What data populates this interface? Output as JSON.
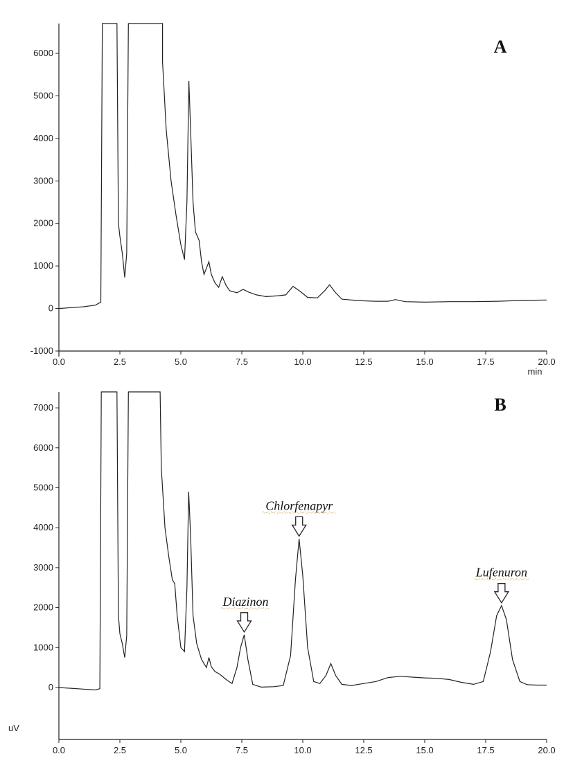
{
  "chart_data": [
    {
      "type": "line",
      "panel_label": "A",
      "xlabel": "min",
      "ylabel": "",
      "xlim": [
        0,
        20
      ],
      "ylim": [
        -1000,
        6700
      ],
      "x_ticks": [
        "0.0",
        "2.5",
        "5.0",
        "7.5",
        "10.0",
        "12.5",
        "15.0",
        "17.5",
        "20.0"
      ],
      "y_ticks": [
        "-1000",
        "0",
        "1000",
        "2000",
        "3000",
        "4000",
        "5000",
        "6000"
      ],
      "series": [
        {
          "x": [
            0,
            0.5,
            1.0,
            1.5,
            1.72,
            1.78,
            1.84,
            2.3,
            2.38,
            2.44,
            2.5,
            2.6,
            2.7,
            2.78,
            2.85,
            2.92,
            4.25,
            4.25,
            4.4,
            4.6,
            4.8,
            5.0,
            5.15,
            5.25,
            5.33,
            5.4,
            5.5,
            5.6,
            5.75,
            5.85,
            5.95,
            6.05,
            6.15,
            6.25,
            6.4,
            6.55,
            6.7,
            6.85,
            7.0,
            7.3,
            7.55,
            7.8,
            8.1,
            8.5,
            9.0,
            9.3,
            9.6,
            9.9,
            10.2,
            10.6,
            10.9,
            11.1,
            11.3,
            11.6,
            12.0,
            12.5,
            13.0,
            13.5,
            13.8,
            14.2,
            15.0,
            16.0,
            17.0,
            18.0,
            19.0,
            20.0
          ],
          "y": [
            0,
            20,
            40,
            80,
            150,
            6700,
            6700,
            6700,
            6700,
            2000,
            1700,
            1300,
            730,
            1300,
            6700,
            6700,
            6700,
            5800,
            4200,
            3000,
            2200,
            1500,
            1150,
            2500,
            5350,
            4200,
            2500,
            1800,
            1600,
            1100,
            800,
            950,
            1100,
            800,
            600,
            500,
            750,
            550,
            420,
            370,
            450,
            380,
            320,
            280,
            300,
            320,
            520,
            400,
            260,
            250,
            420,
            560,
            400,
            220,
            200,
            180,
            170,
            170,
            210,
            160,
            150,
            160,
            160,
            170,
            190,
            200
          ]
        }
      ]
    },
    {
      "type": "line",
      "panel_label": "B",
      "xlabel": "",
      "ylabel": "uV",
      "xlim": [
        0,
        20
      ],
      "ylim": [
        -1300,
        7400
      ],
      "x_ticks": [
        "0.0",
        "2.5",
        "5.0",
        "7.5",
        "10.0",
        "12.5",
        "15.0",
        "17.5",
        "20.0"
      ],
      "y_ticks": [
        "0",
        "1000",
        "2000",
        "3000",
        "4000",
        "5000",
        "6000",
        "7000"
      ],
      "series": [
        {
          "x": [
            0,
            0.5,
            1.0,
            1.5,
            1.68,
            1.74,
            1.8,
            2.3,
            2.38,
            2.44,
            2.5,
            2.6,
            2.7,
            2.78,
            2.85,
            2.92,
            4.15,
            4.2,
            4.35,
            4.5,
            4.65,
            4.75,
            4.85,
            5.0,
            5.15,
            5.25,
            5.32,
            5.4,
            5.5,
            5.65,
            5.85,
            6.05,
            6.15,
            6.25,
            6.4,
            6.6,
            6.9,
            7.1,
            7.3,
            7.45,
            7.6,
            7.75,
            7.95,
            8.3,
            8.8,
            9.2,
            9.5,
            9.7,
            9.85,
            10.0,
            10.2,
            10.45,
            10.7,
            10.95,
            11.15,
            11.35,
            11.6,
            12.0,
            12.5,
            13.0,
            13.5,
            14.0,
            14.5,
            15.0,
            15.5,
            16.0,
            16.5,
            17.0,
            17.4,
            17.7,
            17.95,
            18.15,
            18.35,
            18.6,
            18.9,
            19.2,
            19.6,
            20.0
          ],
          "y": [
            0,
            -20,
            -40,
            -60,
            -30,
            7400,
            7400,
            7400,
            7400,
            1800,
            1350,
            1100,
            750,
            1300,
            7400,
            7400,
            7400,
            5500,
            4000,
            3300,
            2700,
            2600,
            1800,
            1000,
            900,
            2500,
            4900,
            3800,
            1800,
            1100,
            700,
            500,
            750,
            520,
            400,
            330,
            180,
            100,
            500,
            1000,
            1320,
            700,
            80,
            10,
            20,
            50,
            800,
            2700,
            3720,
            2800,
            1000,
            150,
            100,
            300,
            600,
            300,
            80,
            50,
            100,
            150,
            250,
            280,
            260,
            240,
            230,
            200,
            130,
            80,
            150,
            900,
            1800,
            2050,
            1700,
            700,
            150,
            70,
            60,
            60
          ]
        }
      ],
      "annotations": [
        {
          "text": "Diazinon",
          "x": 7.6,
          "y": 1320
        },
        {
          "text": "Chlorfenapyr",
          "x": 9.85,
          "y": 3720
        },
        {
          "text": "Lufenuron",
          "x": 18.15,
          "y": 2050
        }
      ]
    }
  ]
}
